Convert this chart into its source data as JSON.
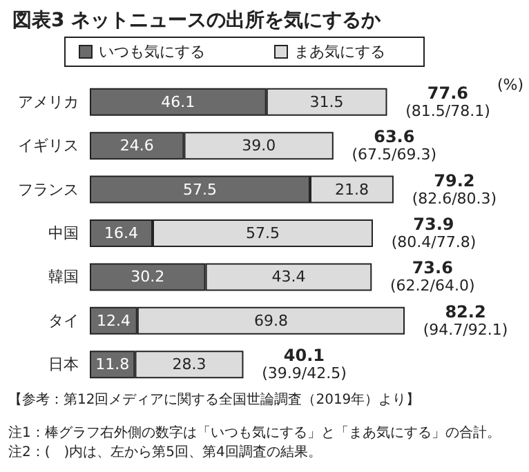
{
  "chart_data": {
    "type": "bar",
    "orientation": "horizontal",
    "stacked": true,
    "title": "図表3 ネットニュースの出所を気にするか",
    "categories": [
      "アメリカ",
      "イギリス",
      "フランス",
      "中国",
      "韓国",
      "タイ",
      "日本"
    ],
    "series": [
      {
        "name": "いつも気にする",
        "color": "#6b6b6b",
        "values": [
          46.1,
          24.6,
          57.5,
          16.4,
          30.2,
          12.4,
          11.8
        ],
        "value_labels": [
          "46.1",
          "24.6",
          "57.5",
          "16.4",
          "30.2",
          "12.4",
          "11.8"
        ]
      },
      {
        "name": "まあ気にする",
        "color": "#dcdcdc",
        "values": [
          31.5,
          39.0,
          21.8,
          57.5,
          43.4,
          69.8,
          28.3
        ],
        "value_labels": [
          "31.5",
          "39.0",
          "21.8",
          "57.5",
          "43.4",
          "69.8",
          "28.3"
        ]
      }
    ],
    "totals": [
      "77.6",
      "63.6",
      "79.2",
      "73.9",
      "73.6",
      "82.2",
      "40.1"
    ],
    "annotations": [
      "(81.5/78.1)",
      "(67.5/69.3)",
      "(82.6/80.3)",
      "(80.4/77.8)",
      "(62.2/64.0)",
      "(94.7/92.1)",
      "(39.9/42.5)",
      "(%)",
      "【参考：第12回メディアに関する全国世論調査（2019年）より】",
      "注1：棒グラフ右外側の数字は「いつも気にする」と「まあ気にする」の合計。",
      "注2：(　)内は、左から第5回、第4回調査の結果。"
    ],
    "legend": "top"
  }
}
